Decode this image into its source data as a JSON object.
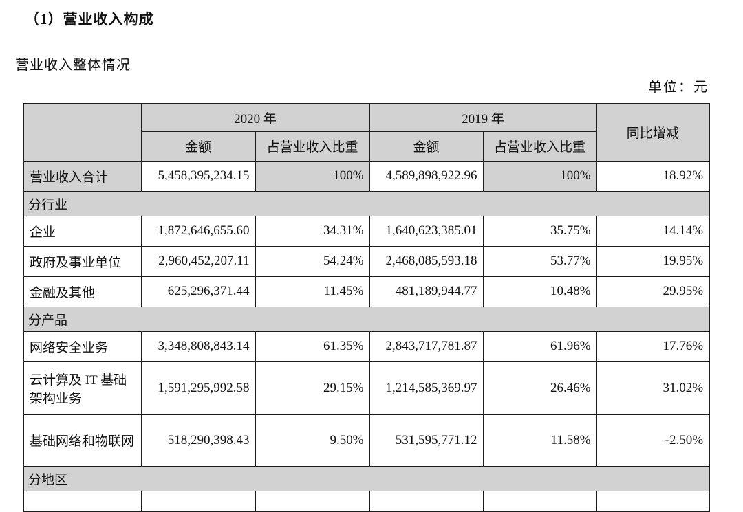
{
  "page": {
    "title": "（1）营业收入构成",
    "subtitle": "营业收入整体情况",
    "unit_label": "单位：元"
  },
  "colors": {
    "cell_gray": "#d2d2d2",
    "border": "#1d1d1d",
    "background": "#ffffff"
  },
  "table": {
    "header": {
      "year_2020": "2020 年",
      "year_2019": "2019 年",
      "amount_2020": "金额",
      "proportion_2020": "占营业收入比重",
      "amount_2019": "金额",
      "proportion_2019": "占营业收入比重",
      "yoy": "同比增减"
    },
    "rows": [
      {
        "type": "data",
        "highlight": true,
        "label": "营业收入合计",
        "a2020": "5,458,395,234.15",
        "p2020": "100%",
        "a2019": "4,589,898,922.96",
        "p2019": "100%",
        "yoy": "18.92%"
      },
      {
        "type": "section",
        "label": "分行业"
      },
      {
        "type": "data",
        "label": "企业",
        "a2020": "1,872,646,655.60",
        "p2020": "34.31%",
        "a2019": "1,640,623,385.01",
        "p2019": "35.75%",
        "yoy": "14.14%"
      },
      {
        "type": "data",
        "label": "政府及事业单位",
        "a2020": "2,960,452,207.11",
        "p2020": "54.24%",
        "a2019": "2,468,085,593.18",
        "p2019": "53.77%",
        "yoy": "19.95%"
      },
      {
        "type": "data",
        "label": "金融及其他",
        "a2020": "625,296,371.44",
        "p2020": "11.45%",
        "a2019": "481,189,944.77",
        "p2019": "10.48%",
        "yoy": "29.95%"
      },
      {
        "type": "section",
        "label": "分产品"
      },
      {
        "type": "data",
        "label": "网络安全业务",
        "a2020": "3,348,808,843.14",
        "p2020": "61.35%",
        "a2019": "2,843,717,781.87",
        "p2019": "61.96%",
        "yoy": "17.76%"
      },
      {
        "type": "data",
        "tall": 1,
        "label": "云计算及 IT 基础架构业务",
        "a2020": "1,591,295,992.58",
        "p2020": "29.15%",
        "a2019": "1,214,585,369.97",
        "p2019": "26.46%",
        "yoy": "31.02%"
      },
      {
        "type": "data",
        "tall": 2,
        "label": "基础网络和物联网",
        "a2020": "518,290,398.43",
        "p2020": "9.50%",
        "a2019": "531,595,771.12",
        "p2019": "11.58%",
        "yoy": "-2.50%"
      },
      {
        "type": "section",
        "label": "分地区"
      },
      {
        "type": "partial"
      }
    ]
  }
}
